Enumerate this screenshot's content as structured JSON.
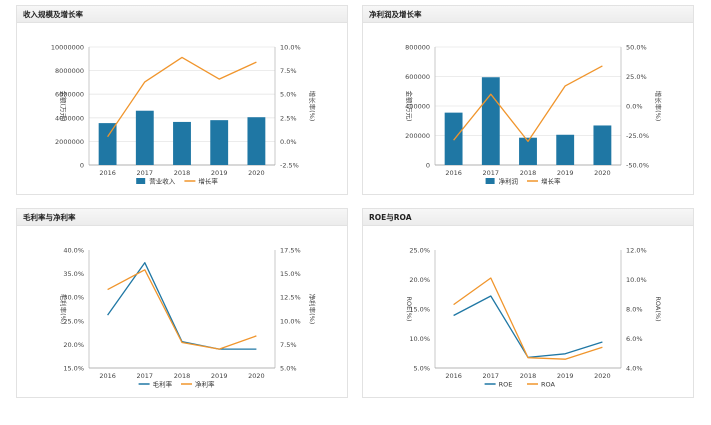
{
  "chart_data": [
    {
      "type": "bar",
      "title": "收入规模及增长率",
      "categories": [
        "2016",
        "2017",
        "2018",
        "2019",
        "2020"
      ],
      "series": [
        {
          "name": "营业收入",
          "type": "bar",
          "axis": "left",
          "color": "#1f77a4",
          "values": [
            3550000,
            4600000,
            3650000,
            3800000,
            4050000
          ]
        },
        {
          "name": "增长率",
          "type": "line",
          "axis": "right",
          "color": "#f0952c",
          "values": [
            0.5,
            6.3,
            8.9,
            6.6,
            8.4
          ]
        }
      ],
      "ylabel": "金额(万元)",
      "y2label": "增长率(%)",
      "ylim": [
        0,
        10000000
      ],
      "y2lim": [
        -2.5,
        10.0
      ],
      "yticks": [
        "10000000",
        "8000000",
        "6000000",
        "4000000",
        "2000000",
        "0"
      ],
      "y2ticks": [
        "10.0%",
        "7.5%",
        "5.0%",
        "2.5%",
        "0.0%",
        "-2.5%"
      ],
      "grid": true,
      "legend": "bottom"
    },
    {
      "type": "bar",
      "title": "净利润及增长率",
      "categories": [
        "2016",
        "2017",
        "2018",
        "2019",
        "2020"
      ],
      "series": [
        {
          "name": "净利润",
          "type": "bar",
          "axis": "left",
          "color": "#1f77a4",
          "values": [
            355000,
            595000,
            185000,
            205000,
            268000
          ]
        },
        {
          "name": "增长率",
          "type": "line",
          "axis": "right",
          "color": "#f0952c",
          "values": [
            -29,
            10,
            -30,
            17,
            34
          ]
        }
      ],
      "ylabel": "金额(万元)",
      "y2label": "增长率(%)",
      "ylim": [
        0,
        800000
      ],
      "y2lim": [
        -50,
        50
      ],
      "yticks": [
        "800000",
        "600000",
        "400000",
        "200000",
        "0"
      ],
      "y2ticks": [
        "50.0%",
        "25.0%",
        "0.0%",
        "-25.0%",
        "-50.0%"
      ],
      "grid": true,
      "legend": "bottom"
    },
    {
      "type": "line",
      "title": "毛利率与净利率",
      "categories": [
        "2016",
        "2017",
        "2018",
        "2019",
        "2020"
      ],
      "series": [
        {
          "name": "毛利率",
          "axis": "left",
          "color": "#1f77a4",
          "values": [
            26.2,
            37.3,
            20.6,
            19.0,
            19.0
          ]
        },
        {
          "name": "净利率",
          "axis": "right",
          "color": "#f0952c",
          "values": [
            13.3,
            15.4,
            7.7,
            7.0,
            8.4
          ]
        }
      ],
      "ylabel": "毛利率(%)",
      "y2label": "净利率(%)",
      "ylim": [
        15,
        40
      ],
      "y2lim": [
        5,
        17.5
      ],
      "yticks": [
        "40.0%",
        "35.0%",
        "30.0%",
        "25.0%",
        "20.0%",
        "15.0%"
      ],
      "y2ticks": [
        "17.5%",
        "15.0%",
        "12.5%",
        "10.0%",
        "7.5%",
        "5.0%"
      ],
      "grid": false,
      "legend": "bottom"
    },
    {
      "type": "line",
      "title": "ROE与ROA",
      "categories": [
        "2016",
        "2017",
        "2018",
        "2019",
        "2020"
      ],
      "series": [
        {
          "name": "ROE",
          "axis": "left",
          "color": "#1f77a4",
          "values": [
            13.9,
            17.2,
            6.8,
            7.4,
            9.4
          ]
        },
        {
          "name": "ROA",
          "axis": "right",
          "color": "#f0952c",
          "values": [
            8.3,
            10.1,
            4.7,
            4.6,
            5.4
          ]
        }
      ],
      "ylabel": "ROE(%)",
      "y2label": "ROA(%)",
      "ylim": [
        5,
        25
      ],
      "y2lim": [
        4,
        12
      ],
      "yticks": [
        "25.0%",
        "20.0%",
        "15.0%",
        "10.0%",
        "5.0%"
      ],
      "y2ticks": [
        "12.0%",
        "10.0%",
        "8.0%",
        "6.0%",
        "4.0%"
      ],
      "grid": false,
      "legend": "bottom"
    }
  ]
}
